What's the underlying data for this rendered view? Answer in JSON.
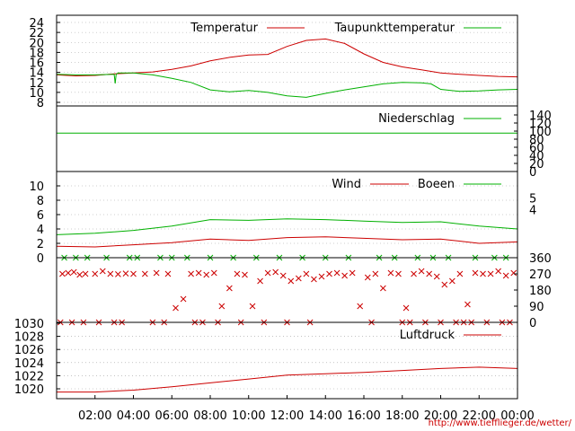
{
  "source_url": "http://www.tiefflieger.de/wetter/",
  "colors": {
    "red": "#cc0000",
    "green": "#00b000",
    "grid": "#a0a0a0",
    "axis": "#000000"
  },
  "chart_data": [
    {
      "id": "temp",
      "type": "line",
      "ylim": [
        7,
        26
      ],
      "yticks": [
        8,
        10,
        12,
        14,
        16,
        18,
        20,
        22,
        24
      ],
      "grid": true,
      "legend": "top-right",
      "series": [
        {
          "name": "Temperatur",
          "color": "#cc0000",
          "x": [
            0,
            1,
            2,
            3,
            4,
            5,
            6,
            7,
            8,
            9,
            10,
            11,
            12,
            13,
            14,
            15,
            16,
            17,
            18,
            19,
            20,
            21,
            22,
            23,
            24
          ],
          "values": [
            13.5,
            13.3,
            13.4,
            13.7,
            13.9,
            14.1,
            14.6,
            15.3,
            16.3,
            17.0,
            17.5,
            17.6,
            19.2,
            20.4,
            20.7,
            19.8,
            17.7,
            16.0,
            15.1,
            14.5,
            13.9,
            13.6,
            13.4,
            13.2,
            13.1
          ]
        },
        {
          "name": "Taupunkttemperatur",
          "color": "#00b000",
          "x": [
            0,
            1,
            2,
            3,
            3.05,
            3.1,
            3.2,
            4,
            5,
            6,
            7,
            8,
            9,
            10,
            11,
            12,
            13,
            14,
            15,
            16,
            17,
            18,
            19,
            19.5,
            20,
            21,
            22,
            23,
            24
          ],
          "values": [
            13.6,
            13.5,
            13.5,
            13.6,
            11.8,
            13.6,
            13.9,
            13.9,
            13.5,
            12.8,
            12.0,
            10.5,
            10.1,
            10.4,
            10.0,
            9.3,
            9.0,
            9.8,
            10.5,
            11.1,
            11.7,
            12.0,
            11.9,
            11.7,
            10.6,
            10.2,
            10.3,
            10.5,
            10.6
          ]
        }
      ]
    },
    {
      "id": "precip",
      "type": "line",
      "ylim": [
        0,
        140
      ],
      "yticks": [
        0,
        20,
        40,
        60,
        80,
        100,
        120,
        140
      ],
      "legend": "top-right",
      "series": [
        {
          "name": "Niederschlag",
          "color": "#00b000",
          "x": [
            0,
            24
          ],
          "values": [
            95,
            95
          ]
        }
      ]
    },
    {
      "id": "wind",
      "type": "line",
      "ylim": [
        0,
        11
      ],
      "yticks": [
        0,
        2,
        4,
        6,
        8,
        10
      ],
      "yticks_right": [
        4,
        5
      ],
      "grid": true,
      "legend": "top-right",
      "series": [
        {
          "name": "Wind",
          "color": "#cc0000",
          "x": [
            0,
            2,
            4,
            6,
            8,
            10,
            12,
            14,
            16,
            18,
            20,
            22,
            24
          ],
          "values": [
            1.6,
            1.5,
            1.8,
            2.1,
            2.6,
            2.4,
            2.8,
            2.9,
            2.7,
            2.5,
            2.6,
            2.0,
            2.2
          ]
        },
        {
          "name": "Boeen",
          "color": "#00b000",
          "x": [
            0,
            2,
            4,
            6,
            8,
            10,
            12,
            14,
            16,
            18,
            20,
            22,
            24
          ],
          "values": [
            3.2,
            3.4,
            3.8,
            4.4,
            5.3,
            5.2,
            5.4,
            5.3,
            5.1,
            4.9,
            5.0,
            4.4,
            4.0
          ]
        }
      ]
    },
    {
      "id": "winddir",
      "type": "scatter",
      "ylim": [
        0,
        360
      ],
      "yticks": [
        0,
        90,
        180,
        270,
        360
      ],
      "series": [
        {
          "name": "",
          "color": "#cc0000",
          "x": [
            0.3,
            0.6,
            0.9,
            1.2,
            1.5,
            2.0,
            2.4,
            2.8,
            3.2,
            3.6,
            4.0,
            4.6,
            5.2,
            5.8,
            6.2,
            6.6,
            7.0,
            7.4,
            7.8,
            8.2,
            8.6,
            9.0,
            9.4,
            9.8,
            10.2,
            10.6,
            11.0,
            11.4,
            11.8,
            12.2,
            12.6,
            13.0,
            13.4,
            13.8,
            14.2,
            14.6,
            15.0,
            15.4,
            15.8,
            16.2,
            16.6,
            17.0,
            17.4,
            17.8,
            18.2,
            18.6,
            19.0,
            19.4,
            19.8,
            20.2,
            20.6,
            21.0,
            21.4,
            21.8,
            22.2,
            22.6,
            23.0,
            23.4,
            23.8
          ],
          "values": [
            270,
            275,
            280,
            265,
            270,
            270,
            285,
            270,
            268,
            272,
            270,
            270,
            275,
            270,
            80,
            130,
            270,
            275,
            265,
            275,
            90,
            190,
            270,
            265,
            90,
            230,
            275,
            280,
            260,
            230,
            245,
            270,
            240,
            255,
            270,
            275,
            260,
            275,
            90,
            250,
            270,
            190,
            275,
            270,
            80,
            270,
            285,
            270,
            255,
            210,
            230,
            270,
            100,
            275,
            270,
            270,
            285,
            260,
            275
          ]
        },
        {
          "name": "",
          "color": "#cc0000",
          "x": [
            0.2,
            0.8,
            1.4,
            2.2,
            3.0,
            3.4,
            5.0,
            5.6,
            7.2,
            7.6,
            8.4,
            9.6,
            10.8,
            12.0,
            13.2,
            16.4,
            18.0,
            18.4,
            19.2,
            20.0,
            20.8,
            21.2,
            21.6,
            22.4,
            23.2,
            23.6
          ],
          "values": [
            0,
            0,
            0,
            0,
            0,
            0,
            0,
            0,
            0,
            0,
            0,
            0,
            0,
            0,
            0,
            0,
            0,
            0,
            0,
            0,
            0,
            0,
            0,
            0,
            0,
            0
          ]
        },
        {
          "name": "",
          "color": "#00b000",
          "x": [
            0.4,
            1.0,
            1.6,
            2.6,
            3.8,
            4.2,
            5.4,
            6.0,
            6.8,
            8.0,
            9.2,
            10.4,
            11.6,
            12.8,
            14.0,
            15.2,
            16.8,
            17.6,
            18.8,
            19.6,
            20.4,
            21.8,
            22.8,
            23.4
          ],
          "values": [
            360,
            360,
            360,
            360,
            360,
            360,
            360,
            360,
            360,
            360,
            360,
            360,
            360,
            360,
            360,
            360,
            360,
            360,
            360,
            360,
            360,
            360,
            360,
            360
          ]
        }
      ]
    },
    {
      "id": "pressure",
      "type": "line",
      "ylim": [
        1018.5,
        1030.5
      ],
      "yticks": [
        1020,
        1022,
        1024,
        1026,
        1028,
        1030
      ],
      "grid": true,
      "legend": "top-right",
      "series": [
        {
          "name": "Luftdruck",
          "color": "#cc0000",
          "x": [
            0,
            2,
            4,
            6,
            8,
            10,
            12,
            14,
            16,
            18,
            20,
            22,
            24
          ],
          "values": [
            1019.5,
            1019.5,
            1019.8,
            1020.3,
            1020.9,
            1021.5,
            1022.1,
            1022.3,
            1022.5,
            1022.8,
            1023.1,
            1023.3,
            1023.1
          ]
        }
      ]
    }
  ],
  "x_axis": {
    "ticks": [
      "02:00",
      "04:00",
      "06:00",
      "08:00",
      "10:00",
      "12:00",
      "14:00",
      "16:00",
      "18:00",
      "20:00",
      "22:00",
      "00:00"
    ],
    "range_hours": [
      0,
      24
    ]
  }
}
